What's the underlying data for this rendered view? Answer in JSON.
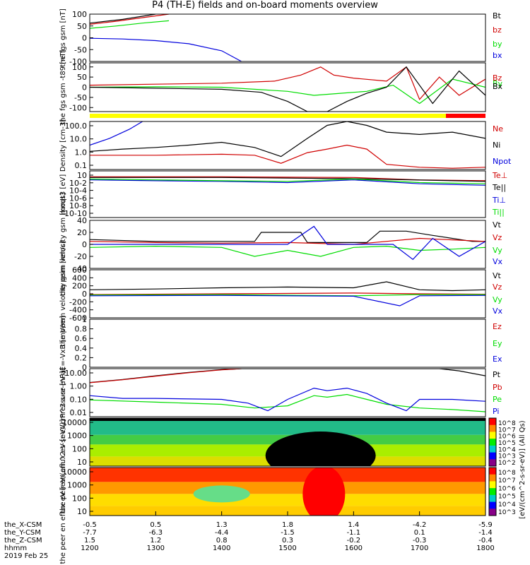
{
  "title": "P4 (TH-E) fields and on-board moments overview",
  "colors": {
    "black": "#000000",
    "red": "#d00000",
    "green": "#00dd00",
    "blue": "#0000dd",
    "yellow": "#ffff00",
    "bar_red": "#ff0000"
  },
  "chart_data": [
    {
      "name": "fgs-gsm",
      "type": "line",
      "ylabel": "the fgs gsm [nT]",
      "ylim": [
        -100,
        100
      ],
      "yticks": [
        100,
        50,
        0,
        -50,
        -100
      ],
      "legend": [
        "Bt",
        "bz",
        "by",
        "bx"
      ],
      "series": [
        {
          "name": "Bt",
          "color": "black",
          "x": [
            12.0,
            12.5,
            13.0
          ],
          "y": [
            62,
            78,
            100
          ]
        },
        {
          "name": "bz",
          "color": "red",
          "x": [
            12.0,
            12.4,
            12.8,
            13.2
          ],
          "y": [
            57,
            70,
            85,
            100
          ]
        },
        {
          "name": "by",
          "color": "green",
          "x": [
            12.0,
            12.4,
            12.8,
            13.2
          ],
          "y": [
            40,
            50,
            62,
            72
          ]
        },
        {
          "name": "bx",
          "color": "blue",
          "x": [
            12.0,
            12.5,
            13.0,
            13.5,
            14.0,
            14.3
          ],
          "y": [
            -2,
            -5,
            -12,
            -25,
            -55,
            -100
          ]
        }
      ]
    },
    {
      "name": "fgs-gsm-t89",
      "type": "line",
      "ylabel": "the fgs gsm -t89 [nT]",
      "ylim": [
        -120,
        120
      ],
      "yticks": [
        100,
        50,
        0,
        -50,
        -100
      ],
      "legend": [
        "Bz",
        "By",
        "Bx"
      ],
      "series": [
        {
          "name": "Bz",
          "color": "red",
          "x": [
            12.0,
            13.0,
            14.0,
            14.8,
            15.2,
            15.5,
            15.7,
            16.0,
            16.5,
            16.8,
            17.0,
            17.3,
            17.6,
            18.0
          ],
          "y": [
            10,
            15,
            20,
            30,
            60,
            100,
            60,
            45,
            30,
            100,
            -60,
            50,
            -40,
            40
          ]
        },
        {
          "name": "By",
          "color": "green",
          "x": [
            12.0,
            13.0,
            14.0,
            15.0,
            15.4,
            15.8,
            16.2,
            16.6,
            17.0,
            17.5,
            18.0
          ],
          "y": [
            0,
            2,
            0,
            -20,
            -40,
            -30,
            -20,
            10,
            -80,
            40,
            0
          ]
        },
        {
          "name": "Bx",
          "color": "black",
          "x": [
            12.0,
            13.0,
            14.0,
            14.6,
            15.0,
            15.3,
            15.6,
            15.9,
            16.2,
            16.5,
            16.8,
            17.2,
            17.6,
            18.0
          ],
          "y": [
            0,
            -5,
            -10,
            -25,
            -70,
            -120,
            -120,
            -70,
            -30,
            0,
            100,
            -80,
            80,
            -40
          ]
        }
      ]
    },
    {
      "name": "density",
      "type": "line",
      "log": true,
      "ylabel": "Density [cm-3]",
      "ylim": [
        0.04,
        200
      ],
      "yticks_labels": [
        "100.0",
        "10.0",
        "1.0",
        "0.1"
      ],
      "legend": [
        "Ne",
        "Ni",
        "Npot"
      ],
      "series": [
        {
          "name": "Ne",
          "color": "red",
          "x": [
            12.0,
            13.0,
            14.0,
            14.5,
            14.9,
            15.3,
            15.6,
            15.9,
            16.2,
            16.5,
            17.0,
            17.5,
            18.0
          ],
          "y": [
            0.5,
            0.5,
            0.6,
            0.5,
            0.12,
            0.8,
            1.5,
            3.0,
            1.5,
            0.1,
            0.06,
            0.05,
            0.06
          ]
        },
        {
          "name": "Ni",
          "color": "black",
          "x": [
            12.0,
            12.5,
            13.0,
            13.5,
            14.0,
            14.5,
            14.9,
            15.3,
            15.6,
            15.9,
            16.2,
            16.5,
            17.0,
            17.5,
            18.0
          ],
          "y": [
            1.0,
            1.5,
            2.0,
            3.0,
            5.0,
            2.0,
            0.4,
            10,
            100,
            200,
            100,
            30,
            20,
            30,
            10
          ]
        },
        {
          "name": "Npot",
          "color": "blue",
          "x": [
            12.0,
            12.3,
            12.6,
            12.8
          ],
          "y": [
            3,
            10,
            50,
            200
          ]
        }
      ]
    },
    {
      "name": "moqt3",
      "type": "line",
      "log": true,
      "ylabel": "moqt3 [eV]",
      "ylim": [
        1e-10,
        100
      ],
      "yticks_labels": [
        "10",
        "10-2",
        "10-4",
        "10-6",
        "10-8",
        "10-10"
      ],
      "legend": [
        "Te⊥",
        "Te||",
        "Ti⊥",
        "Ti||"
      ],
      "series": [
        {
          "name": "Te⊥",
          "color": "red",
          "x": [
            12.0,
            14.0,
            16.0,
            17.0,
            18.0
          ],
          "y": [
            3,
            3,
            2,
            0.5,
            0.3
          ]
        },
        {
          "name": "Te||",
          "color": "black",
          "x": [
            12.0,
            14.0,
            16.0,
            18.0
          ],
          "y": [
            2,
            2,
            1,
            0.2
          ]
        },
        {
          "name": "Ti⊥",
          "color": "blue",
          "x": [
            12.0,
            13.0,
            14.0,
            15.0,
            16.0,
            17.0,
            18.0
          ],
          "y": [
            0.5,
            0.3,
            0.2,
            0.1,
            0.5,
            0.05,
            0.02
          ]
        },
        {
          "name": "Ti||",
          "color": "green",
          "x": [
            12.0,
            13.0,
            14.0,
            15.0,
            16.0,
            17.0,
            18.0
          ],
          "y": [
            0.8,
            0.5,
            0.3,
            0.2,
            0.8,
            0.1,
            0.05
          ]
        }
      ]
    },
    {
      "name": "peim-velocity",
      "type": "line",
      "ylabel": "the peim velocity gsm [km/s]",
      "ylim": [
        -40,
        40
      ],
      "yticks": [
        40,
        20,
        0,
        -20,
        -40
      ],
      "legend": [
        "Vt",
        "Vz",
        "Vy",
        "Vx"
      ],
      "series": [
        {
          "name": "Vt",
          "color": "black",
          "x": [
            12.0,
            13.0,
            14.0,
            14.5,
            14.6,
            15.2,
            15.3,
            15.8,
            16.2,
            16.4,
            16.8,
            17.2,
            17.8,
            18.0
          ],
          "y": [
            8,
            5,
            5,
            5,
            20,
            20,
            3,
            3,
            3,
            22,
            22,
            15,
            5,
            5
          ]
        },
        {
          "name": "Vz",
          "color": "red",
          "x": [
            12.0,
            13.0,
            14.0,
            15.0,
            16.0,
            17.0,
            18.0
          ],
          "y": [
            5,
            3,
            2,
            3,
            0,
            10,
            5
          ]
        },
        {
          "name": "Vy",
          "color": "green",
          "x": [
            12.0,
            13.0,
            14.0,
            14.5,
            15.0,
            15.5,
            16.0,
            16.5,
            17.0,
            17.5,
            18.0
          ],
          "y": [
            -5,
            -3,
            -5,
            -20,
            -10,
            -20,
            -5,
            -3,
            -10,
            -8,
            -5
          ]
        },
        {
          "name": "Vx",
          "color": "blue",
          "x": [
            12.0,
            13.0,
            14.0,
            15.0,
            15.4,
            15.6,
            16.0,
            16.6,
            16.9,
            17.2,
            17.6,
            18.0
          ],
          "y": [
            0,
            0,
            0,
            0,
            30,
            0,
            0,
            0,
            -25,
            10,
            -20,
            5
          ]
        }
      ]
    },
    {
      "name": "peem-velocity",
      "type": "line",
      "ylabel": "the peem velocity gsm [km/s]",
      "ylim": [
        -600,
        600
      ],
      "yticks": [
        600,
        400,
        200,
        0,
        -200,
        -400,
        -600
      ],
      "legend": [
        "Vt",
        "Vz",
        "Vy",
        "Vx"
      ],
      "series": [
        {
          "name": "Vt",
          "color": "black",
          "x": [
            12.0,
            13.0,
            14.0,
            15.0,
            16.0,
            16.5,
            17.0,
            17.5,
            18.0
          ],
          "y": [
            100,
            120,
            150,
            170,
            150,
            300,
            100,
            80,
            100
          ]
        },
        {
          "name": "Vz",
          "color": "red",
          "x": [
            12.0,
            14.0,
            16.0,
            17.0,
            18.0
          ],
          "y": [
            -20,
            0,
            20,
            0,
            -10
          ]
        },
        {
          "name": "Vy",
          "color": "green",
          "x": [
            12.0,
            14.0,
            16.0,
            17.0,
            18.0
          ],
          "y": [
            -30,
            -20,
            -50,
            -20,
            -20
          ]
        },
        {
          "name": "Vx",
          "color": "blue",
          "x": [
            12.0,
            14.0,
            16.0,
            16.7,
            17.0,
            18.0
          ],
          "y": [
            -50,
            -40,
            -60,
            -300,
            -50,
            -40
          ]
        }
      ]
    },
    {
      "name": "e-field",
      "type": "line",
      "ylabel": "E=-VxB [mV/m]",
      "ylim": [
        0,
        1
      ],
      "yticks": [
        1.0,
        0.8,
        0.6,
        0.4,
        0.2,
        0.0
      ],
      "legend": [
        "Ez",
        "Ey",
        "Ex"
      ],
      "series": []
    },
    {
      "name": "pressure",
      "type": "line",
      "log": true,
      "ylabel": "Pressure [nPa]",
      "ylim": [
        0.004,
        30
      ],
      "yticks_labels": [
        "10.00",
        "1.00",
        "0.10",
        "0.01"
      ],
      "legend": [
        "Pt",
        "Pb",
        "Pe",
        "Pi"
      ],
      "series": [
        {
          "name": "Pt",
          "color": "black",
          "x": [
            12.0,
            12.5,
            13.0,
            13.5,
            14.0,
            14.3,
            17.3,
            17.6,
            18.0
          ],
          "y": [
            2.3,
            4,
            8,
            15,
            25,
            30,
            30,
            20,
            8
          ]
        },
        {
          "name": "Pb",
          "color": "red",
          "x": [
            12.0,
            12.5,
            13.0,
            13.5,
            14.0,
            14.3
          ],
          "y": [
            2.2,
            3.8,
            7.5,
            14,
            24,
            30
          ]
        },
        {
          "name": "Pe",
          "color": "green",
          "x": [
            12.0,
            13.0,
            14.0,
            14.5,
            15.0,
            15.4,
            15.6,
            15.9,
            16.2,
            16.5,
            17.0,
            17.5,
            18.0
          ],
          "y": [
            0.09,
            0.06,
            0.04,
            0.02,
            0.03,
            0.2,
            0.15,
            0.25,
            0.1,
            0.04,
            0.02,
            0.015,
            0.01
          ]
        },
        {
          "name": "Pi",
          "color": "blue",
          "x": [
            12.0,
            12.5,
            13.0,
            14.0,
            14.4,
            14.7,
            15.0,
            15.4,
            15.6,
            15.9,
            16.2,
            16.5,
            16.8,
            17.0,
            17.5,
            18.0
          ],
          "y": [
            0.2,
            0.12,
            0.12,
            0.1,
            0.05,
            0.012,
            0.1,
            0.8,
            0.5,
            0.8,
            0.3,
            0.05,
            0.012,
            0.1,
            0.1,
            0.07
          ]
        }
      ]
    },
    {
      "name": "peir-en-eflux",
      "type": "heatmap",
      "ylabel": "the peir en eflux eV [eV/(cm^2-s-sr-eV)]",
      "ylim": [
        5,
        20000
      ],
      "yticks_labels": [
        "10000",
        "1000",
        "100",
        "10"
      ],
      "colorbar_ticks": [
        "10^8",
        "10^7",
        "10^6",
        "10^5",
        "10^4",
        "10^3",
        "10^2"
      ]
    },
    {
      "name": "peer-en-eflux",
      "type": "heatmap",
      "ylabel": "the peer en eflux eV [eV/(cm^2-s-sr-eV)]",
      "ylim": [
        5,
        20000
      ],
      "yticks_labels": [
        "10000",
        "1000",
        "100",
        "10"
      ],
      "colorbar_ticks": [
        "10^8",
        "10^7",
        "10^6",
        "10^5",
        "10^4",
        "10^3"
      ]
    }
  ],
  "colorbar_label": "[eV/(cm^2-s-sr-eV)] (All Qs)",
  "x_axis": {
    "rows": [
      {
        "label": "the_X-CSM",
        "values": [
          "-0.5",
          "0.5",
          "1.3",
          "1.8",
          "1.4",
          "-4.2",
          "-5.9"
        ]
      },
      {
        "label": "the_Y-CSM",
        "values": [
          "-7.7",
          "-6.3",
          "-4.4",
          "-1.5",
          "-1.1",
          "0.1",
          "-1.4"
        ]
      },
      {
        "label": "the_Z-CSM",
        "values": [
          "1.5",
          "1.2",
          "0.8",
          "0.3",
          "-0.2",
          "-0.3",
          "-0.4"
        ]
      },
      {
        "label": "hhmm",
        "values": [
          "1200",
          "1300",
          "1400",
          "1500",
          "1600",
          "1700",
          "1800"
        ]
      }
    ],
    "date": "2019 Feb 25",
    "xlim": [
      12.0,
      18.0
    ],
    "ticks": [
      12,
      13,
      14,
      15,
      16,
      17,
      18
    ]
  }
}
